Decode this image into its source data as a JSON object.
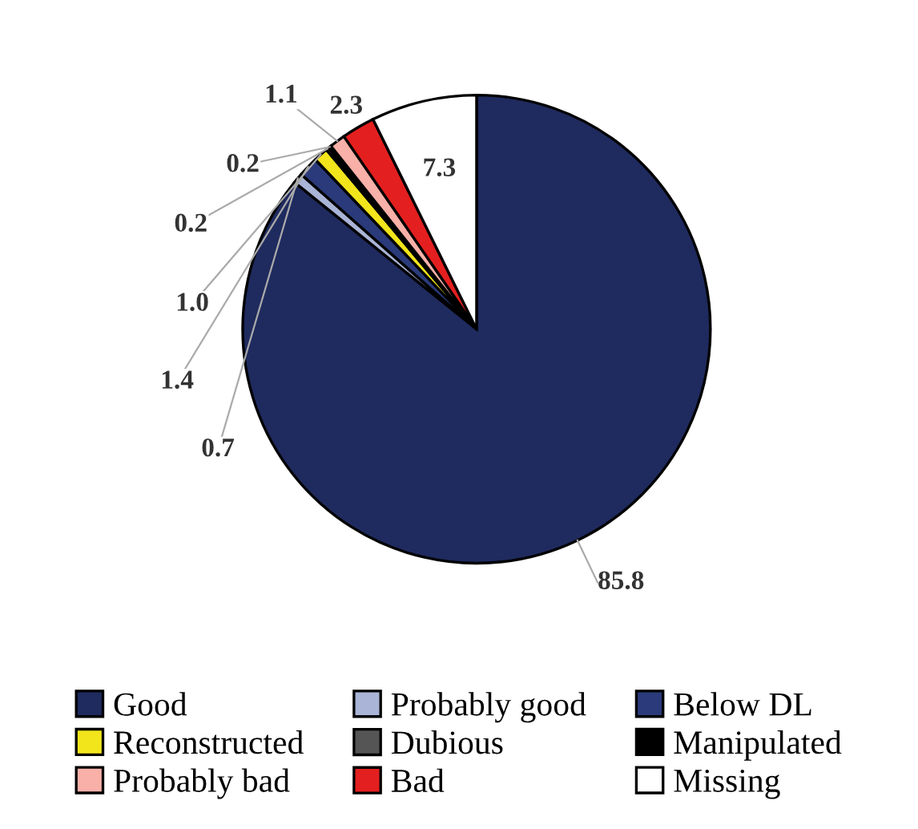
{
  "chart_data": {
    "type": "pie",
    "categories": [
      "Good",
      "Probably good",
      "Below DL",
      "Reconstructed",
      "Dubious",
      "Manipulated",
      "Probably bad",
      "Bad",
      "Missing"
    ],
    "values": [
      85.8,
      0.7,
      1.4,
      1.0,
      0.2,
      0.2,
      1.1,
      2.3,
      7.3
    ],
    "colors": [
      "#1f2a5e",
      "#a9b4d6",
      "#2a3a7a",
      "#f2e51c",
      "#555555",
      "#000000",
      "#f8b0a8",
      "#e41f1f",
      "#ffffff"
    ],
    "value_labels": [
      "85.8",
      "0.7",
      "1.4",
      "1.0",
      "0.2",
      "0.2",
      "1.1",
      "2.3",
      "7.3"
    ],
    "legend": "bottom"
  }
}
